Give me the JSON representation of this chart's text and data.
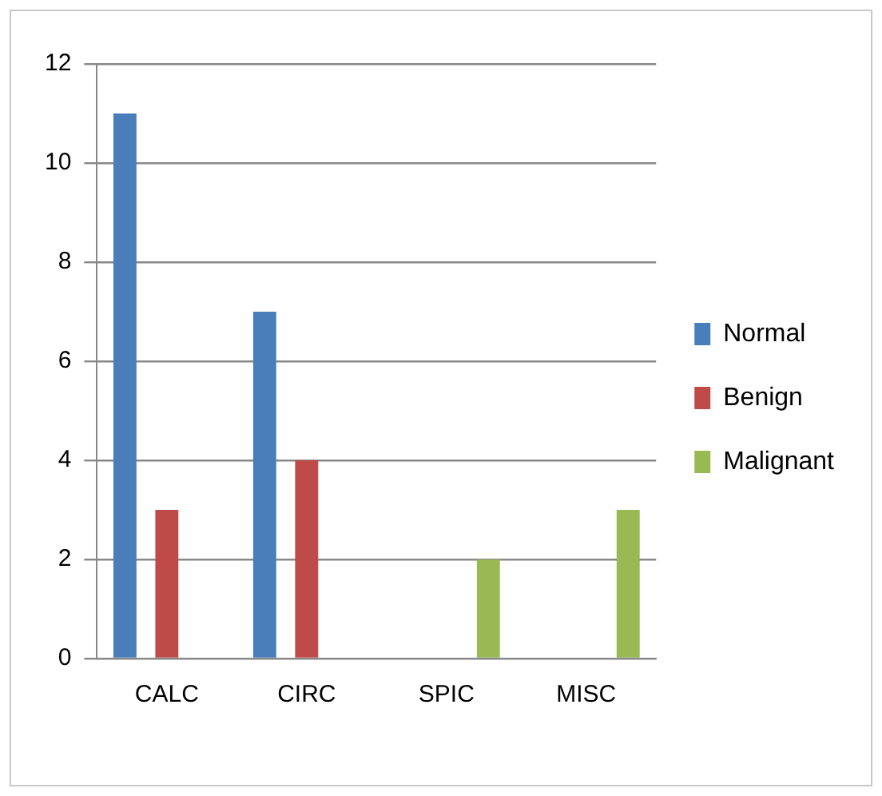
{
  "chart_data": {
    "type": "bar",
    "categories": [
      "CALC",
      "CIRC",
      "SPIC",
      "MISC"
    ],
    "series": [
      {
        "name": "Normal",
        "color": "#4a7ebb",
        "values": [
          11,
          7,
          0,
          0
        ]
      },
      {
        "name": "Benign",
        "color": "#be4b48",
        "values": [
          3,
          4,
          0,
          0
        ]
      },
      {
        "name": "Malignant",
        "color": "#98b954",
        "values": [
          0,
          0,
          2,
          3
        ]
      }
    ],
    "ylim": [
      0,
      12
    ],
    "yticks": [
      0,
      2,
      4,
      6,
      8,
      10,
      12
    ],
    "grid": "y",
    "legend": "right"
  }
}
